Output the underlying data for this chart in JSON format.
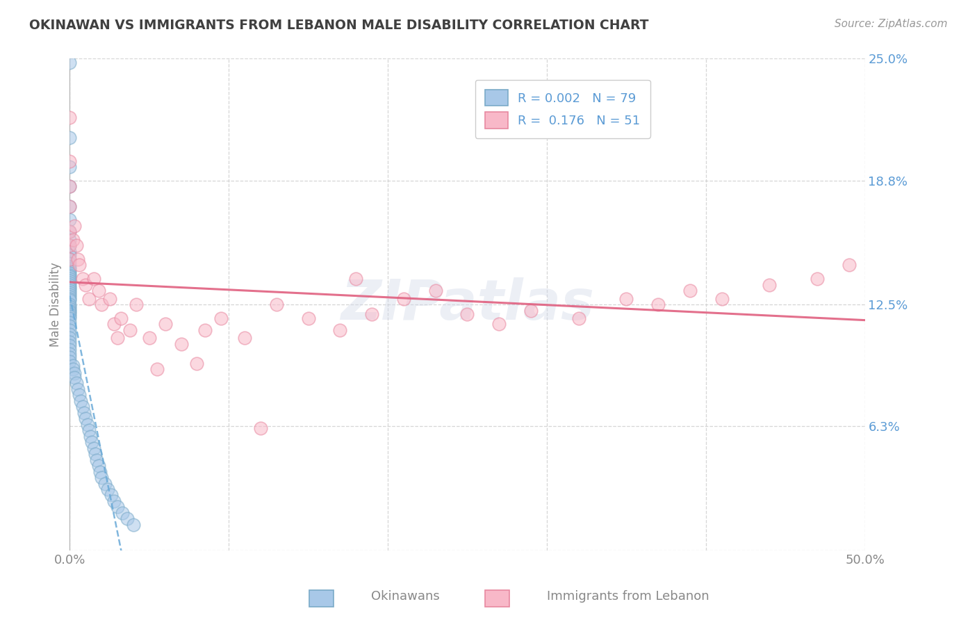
{
  "title": "OKINAWAN VS IMMIGRANTS FROM LEBANON MALE DISABILITY CORRELATION CHART",
  "source_text": "Source: ZipAtlas.com",
  "ylabel": "Male Disability",
  "watermark": "ZIPatlas",
  "xmin": 0.0,
  "xmax": 0.5,
  "ymin": 0.0,
  "ymax": 0.25,
  "yticks": [
    0.0,
    0.063,
    0.125,
    0.188,
    0.25
  ],
  "ytick_labels": [
    "",
    "6.3%",
    "12.5%",
    "18.8%",
    "25.0%"
  ],
  "xtick_pos": [
    0.0,
    0.1,
    0.2,
    0.3,
    0.4,
    0.5
  ],
  "xtick_labels": [
    "0.0%",
    "",
    "",
    "",
    "",
    "50.0%"
  ],
  "legend1_label": "R = 0.002   N = 79",
  "legend2_label": "R =  0.176   N = 51",
  "scatter1_color": "#a8c8e8",
  "scatter1_edge": "#7aaac8",
  "scatter2_color": "#f8b8c8",
  "scatter2_edge": "#e888a0",
  "trendline1_color": "#6aaad8",
  "trendline2_color": "#e06080",
  "background_color": "#ffffff",
  "grid_color": "#cccccc",
  "title_color": "#404040",
  "axis_color": "#888888",
  "tick_color": "#5b9bd5",
  "legend_text_color": "#5b9bd5",
  "bottom_label1": "Okinawans",
  "bottom_label2": "Immigrants from Lebanon",
  "okinawan_x": [
    0.0,
    0.0,
    0.0,
    0.0,
    0.0,
    0.0,
    0.0,
    0.0,
    0.0,
    0.0,
    0.0,
    0.0,
    0.0,
    0.0,
    0.0,
    0.0,
    0.0,
    0.0,
    0.0,
    0.0,
    0.0,
    0.0,
    0.0,
    0.0,
    0.0,
    0.0,
    0.0,
    0.0,
    0.0,
    0.0,
    0.0,
    0.0,
    0.0,
    0.0,
    0.0,
    0.0,
    0.0,
    0.0,
    0.0,
    0.0,
    0.0,
    0.0,
    0.0,
    0.0,
    0.0,
    0.0,
    0.0,
    0.0,
    0.0,
    0.0,
    0.002,
    0.002,
    0.003,
    0.003,
    0.004,
    0.005,
    0.006,
    0.007,
    0.008,
    0.009,
    0.01,
    0.011,
    0.012,
    0.013,
    0.014,
    0.015,
    0.016,
    0.017,
    0.018,
    0.019,
    0.02,
    0.022,
    0.024,
    0.026,
    0.028,
    0.03,
    0.033,
    0.036,
    0.04
  ],
  "okinawan_y": [
    0.248,
    0.21,
    0.195,
    0.185,
    0.175,
    0.168,
    0.162,
    0.158,
    0.155,
    0.152,
    0.15,
    0.148,
    0.146,
    0.144,
    0.143,
    0.142,
    0.141,
    0.14,
    0.139,
    0.138,
    0.137,
    0.136,
    0.135,
    0.134,
    0.133,
    0.132,
    0.131,
    0.13,
    0.129,
    0.128,
    0.127,
    0.125,
    0.124,
    0.123,
    0.122,
    0.121,
    0.12,
    0.119,
    0.118,
    0.116,
    0.114,
    0.112,
    0.11,
    0.108,
    0.106,
    0.104,
    0.102,
    0.1,
    0.098,
    0.096,
    0.094,
    0.092,
    0.09,
    0.088,
    0.085,
    0.082,
    0.079,
    0.076,
    0.073,
    0.07,
    0.067,
    0.064,
    0.061,
    0.058,
    0.055,
    0.052,
    0.049,
    0.046,
    0.043,
    0.04,
    0.037,
    0.034,
    0.031,
    0.028,
    0.025,
    0.022,
    0.019,
    0.016,
    0.013
  ],
  "lebanon_x": [
    0.0,
    0.0,
    0.0,
    0.0,
    0.0,
    0.0,
    0.0,
    0.002,
    0.003,
    0.004,
    0.005,
    0.006,
    0.008,
    0.01,
    0.012,
    0.015,
    0.018,
    0.02,
    0.025,
    0.028,
    0.032,
    0.038,
    0.042,
    0.05,
    0.06,
    0.07,
    0.085,
    0.095,
    0.11,
    0.13,
    0.15,
    0.17,
    0.19,
    0.21,
    0.23,
    0.25,
    0.27,
    0.29,
    0.32,
    0.35,
    0.37,
    0.39,
    0.41,
    0.44,
    0.47,
    0.49,
    0.18,
    0.08,
    0.03,
    0.055,
    0.12
  ],
  "lebanon_y": [
    0.22,
    0.198,
    0.185,
    0.175,
    0.162,
    0.155,
    0.148,
    0.158,
    0.165,
    0.155,
    0.148,
    0.145,
    0.138,
    0.135,
    0.128,
    0.138,
    0.132,
    0.125,
    0.128,
    0.115,
    0.118,
    0.112,
    0.125,
    0.108,
    0.115,
    0.105,
    0.112,
    0.118,
    0.108,
    0.125,
    0.118,
    0.112,
    0.12,
    0.128,
    0.132,
    0.12,
    0.115,
    0.122,
    0.118,
    0.128,
    0.125,
    0.132,
    0.128,
    0.135,
    0.138,
    0.145,
    0.138,
    0.095,
    0.108,
    0.092,
    0.062
  ],
  "figsize": [
    14.06,
    8.92
  ],
  "dpi": 100
}
